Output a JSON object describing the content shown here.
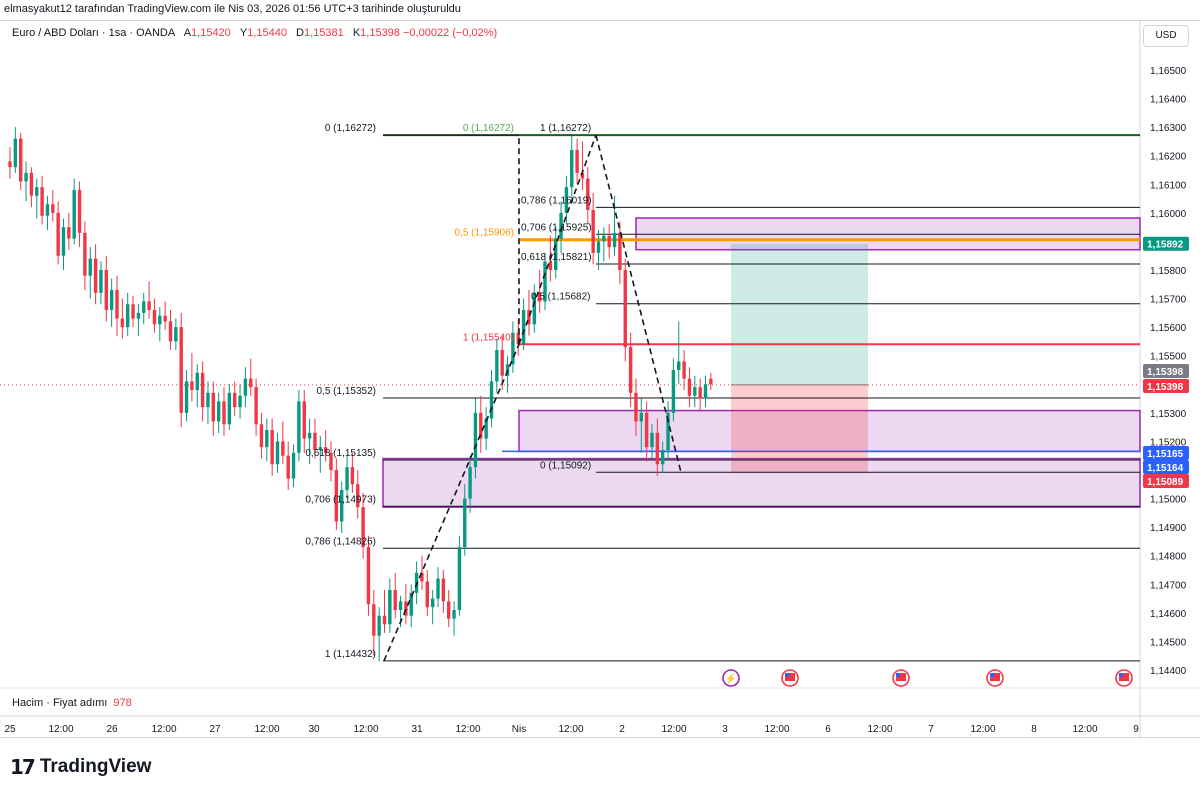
{
  "caption": "elmasyakut12 tarafından TradingView.com ile Nis 03, 2026 01:56 UTC+3 tarihinde oluşturuldu",
  "legend": {
    "symbol": "Euro / ABD Doları · 1sa · OANDA",
    "o_label": "A",
    "o": "1,15420",
    "h_label": "Y",
    "h": "1,15440",
    "l_label": "D",
    "l": "1,15381",
    "c_label": "K",
    "c": "1,15398",
    "change": "−0,00022 (−0,02%)"
  },
  "volume": {
    "label": "Hacim · Fiyat adımı",
    "value": "978"
  },
  "currency_button": "USD",
  "brand": {
    "mark": "17",
    "name": "TradingView"
  },
  "colors": {
    "up": "#089981",
    "down": "#f23645",
    "zone": "#9c27b0",
    "fib_gold": "#ff9800",
    "blue": "#2962ff",
    "green_line": "#1b5e20"
  },
  "chart_data": {
    "type": "candlestick",
    "symbol": "EURUSD",
    "ylim": [
      1.1437,
      1.1665
    ],
    "y_ticks": [
      {
        "value": 1.165,
        "label": "1,16500"
      },
      {
        "value": 1.164,
        "label": "1,16400"
      },
      {
        "value": 1.163,
        "label": "1,16300"
      },
      {
        "value": 1.162,
        "label": "1,16200"
      },
      {
        "value": 1.161,
        "label": "1,16100"
      },
      {
        "value": 1.16,
        "label": "1,16000"
      },
      {
        "value": 1.159,
        "label": "1,15900"
      },
      {
        "value": 1.158,
        "label": "1,15800"
      },
      {
        "value": 1.157,
        "label": "1,15700"
      },
      {
        "value": 1.156,
        "label": "1,15600"
      },
      {
        "value": 1.155,
        "label": "1,15500"
      },
      {
        "value": 1.153,
        "label": "1,15300"
      },
      {
        "value": 1.152,
        "label": "1,15200"
      },
      {
        "value": 1.15,
        "label": "1,15000"
      },
      {
        "value": 1.149,
        "label": "1,14900"
      },
      {
        "value": 1.148,
        "label": "1,14800"
      },
      {
        "value": 1.147,
        "label": "1,14700"
      },
      {
        "value": 1.146,
        "label": "1,14600"
      },
      {
        "value": 1.145,
        "label": "1,14500"
      },
      {
        "value": 1.144,
        "label": "1,14400"
      }
    ],
    "x_ticks": [
      {
        "label": "25",
        "x": 10
      },
      {
        "label": "12:00",
        "x": 61
      },
      {
        "label": "26",
        "x": 112
      },
      {
        "label": "12:00",
        "x": 164
      },
      {
        "label": "27",
        "x": 215
      },
      {
        "label": "12:00",
        "x": 267
      },
      {
        "label": "30",
        "x": 314
      },
      {
        "label": "12:00",
        "x": 366
      },
      {
        "label": "31",
        "x": 417
      },
      {
        "label": "12:00",
        "x": 468
      },
      {
        "label": "Nis",
        "x": 519
      },
      {
        "label": "12:00",
        "x": 571
      },
      {
        "label": "2",
        "x": 622
      },
      {
        "label": "12:00",
        "x": 674
      },
      {
        "label": "3",
        "x": 725
      },
      {
        "label": "12:00",
        "x": 777
      },
      {
        "label": "6",
        "x": 828
      },
      {
        "label": "12:00",
        "x": 880
      },
      {
        "label": "7",
        "x": 931
      },
      {
        "label": "12:00",
        "x": 983
      },
      {
        "label": "8",
        "x": 1034
      },
      {
        "label": "12:00",
        "x": 1085
      },
      {
        "label": "9",
        "x": 1136
      }
    ],
    "price_tags": [
      {
        "value": 1.15892,
        "label": "1,15892",
        "color": "#089981"
      },
      {
        "value": 1.15398,
        "label": "1,15398",
        "color": "#787b86"
      },
      {
        "value": 1.15398,
        "label": "1,15398",
        "color": "#f23645"
      },
      {
        "value": 1.15165,
        "label": "1,15165",
        "color": "#2962ff"
      },
      {
        "value": 1.15164,
        "label": "1,15164",
        "color": "#2962ff"
      },
      {
        "value": 1.15089,
        "label": "1,15089",
        "color": "#f23645"
      }
    ],
    "fib_left": [
      {
        "label": "0 (1,16272)",
        "value": 1.16272,
        "color": "#131722"
      },
      {
        "label": "0,5 (1,15352)",
        "value": 1.15352,
        "color": "#131722"
      },
      {
        "label": "0,618 (1,15135)",
        "value": 1.15135,
        "color": "#131722"
      },
      {
        "label": "0,706 (1,14973)",
        "value": 1.14973,
        "color": "#131722"
      },
      {
        "label": "0,786 (1,14826)",
        "value": 1.14826,
        "color": "#131722"
      },
      {
        "label": "1 (1,14432)",
        "value": 1.14432,
        "color": "#131722"
      }
    ],
    "fib_mid": [
      {
        "label": "0 (1,16272)",
        "value": 1.16272,
        "color": "#4caf50"
      },
      {
        "label": "0,5 (1,15906)",
        "value": 1.15906,
        "color": "#ff9800"
      },
      {
        "label": "1 (1,15540)",
        "value": 1.1554,
        "color": "#f23645"
      }
    ],
    "fib_right": [
      {
        "label": "1 (1,16272)",
        "value": 1.16272,
        "color": "#131722"
      },
      {
        "label": "0,786 (1,16019)",
        "value": 1.16019,
        "color": "#131722"
      },
      {
        "label": "0,706 (1,15925)",
        "value": 1.15925,
        "color": "#131722"
      },
      {
        "label": "0,618 (1,15821)",
        "value": 1.15821,
        "color": "#131722"
      },
      {
        "label": "0,5 (1,15682)",
        "value": 1.15682,
        "color": "#131722"
      },
      {
        "label": "0 (1,15092)",
        "value": 1.15092,
        "color": "#131722"
      }
    ],
    "levels": {
      "green_line": 1.16272,
      "gold_line": 1.15906,
      "red_line": 1.1554,
      "current_price": 1.15398,
      "blue_line": 1.15165
    },
    "zones": [
      {
        "x0": "2026-04-02 07:00",
        "x1": "chart-end",
        "top": 1.15982,
        "bottom": 1.15871
      },
      {
        "x0": "2026-03-31 14:00",
        "x1": "chart-end",
        "top": 1.15308,
        "bottom": 1.15165
      },
      {
        "x0": "2026-03-30 18:00",
        "x1": "chart-end",
        "top": 1.1514,
        "bottom": 1.1497
      }
    ],
    "position": {
      "type": "long",
      "entry": 1.15398,
      "target": 1.15892,
      "stop": 1.15089
    },
    "candles": [
      [
        1.1618,
        1.1623,
        1.1612,
        1.1616
      ],
      [
        1.1616,
        1.163,
        1.1614,
        1.1626
      ],
      [
        1.1626,
        1.1628,
        1.1608,
        1.1611
      ],
      [
        1.1611,
        1.1618,
        1.1604,
        1.1614
      ],
      [
        1.1614,
        1.1616,
        1.1602,
        1.1606
      ],
      [
        1.1606,
        1.1612,
        1.1598,
        1.1609
      ],
      [
        1.1609,
        1.1613,
        1.1596,
        1.1599
      ],
      [
        1.1599,
        1.1606,
        1.1594,
        1.1603
      ],
      [
        1.1603,
        1.1608,
        1.1597,
        1.16
      ],
      [
        1.16,
        1.1604,
        1.1582,
        1.1585
      ],
      [
        1.1585,
        1.1598,
        1.158,
        1.1595
      ],
      [
        1.1595,
        1.16,
        1.1587,
        1.1591
      ],
      [
        1.1591,
        1.1612,
        1.1589,
        1.1608
      ],
      [
        1.1608,
        1.1611,
        1.1588,
        1.1593
      ],
      [
        1.1593,
        1.1597,
        1.1573,
        1.1578
      ],
      [
        1.1578,
        1.1588,
        1.157,
        1.1584
      ],
      [
        1.1584,
        1.1589,
        1.1568,
        1.1572
      ],
      [
        1.1572,
        1.1583,
        1.1568,
        1.158
      ],
      [
        1.158,
        1.1585,
        1.1562,
        1.1566
      ],
      [
        1.1566,
        1.1577,
        1.156,
        1.1573
      ],
      [
        1.1573,
        1.1578,
        1.1557,
        1.1563
      ],
      [
        1.1563,
        1.157,
        1.1556,
        1.156
      ],
      [
        1.156,
        1.1572,
        1.1557,
        1.1568
      ],
      [
        1.1568,
        1.1571,
        1.156,
        1.1563
      ],
      [
        1.1563,
        1.1568,
        1.1557,
        1.1565
      ],
      [
        1.1565,
        1.1572,
        1.1561,
        1.1569
      ],
      [
        1.1569,
        1.1576,
        1.1563,
        1.1566
      ],
      [
        1.1566,
        1.157,
        1.1558,
        1.1561
      ],
      [
        1.1561,
        1.1567,
        1.1555,
        1.1564
      ],
      [
        1.1564,
        1.1569,
        1.1559,
        1.1562
      ],
      [
        1.1562,
        1.1566,
        1.1552,
        1.1555
      ],
      [
        1.1555,
        1.1563,
        1.1552,
        1.156
      ],
      [
        1.156,
        1.1565,
        1.1525,
        1.153
      ],
      [
        1.153,
        1.1545,
        1.1527,
        1.1541
      ],
      [
        1.1541,
        1.1551,
        1.1534,
        1.1538
      ],
      [
        1.1538,
        1.1547,
        1.1532,
        1.1544
      ],
      [
        1.1544,
        1.1548,
        1.1527,
        1.1532
      ],
      [
        1.1532,
        1.1541,
        1.1526,
        1.1537
      ],
      [
        1.1537,
        1.1541,
        1.1522,
        1.1527
      ],
      [
        1.1527,
        1.1537,
        1.1523,
        1.1534
      ],
      [
        1.1534,
        1.1539,
        1.1522,
        1.1526
      ],
      [
        1.1526,
        1.154,
        1.1524,
        1.1537
      ],
      [
        1.1537,
        1.1541,
        1.1529,
        1.1532
      ],
      [
        1.1532,
        1.154,
        1.1528,
        1.1536
      ],
      [
        1.1536,
        1.1546,
        1.1532,
        1.1542
      ],
      [
        1.1542,
        1.1549,
        1.1536,
        1.1539
      ],
      [
        1.1539,
        1.1542,
        1.1522,
        1.1526
      ],
      [
        1.1526,
        1.153,
        1.1514,
        1.1518
      ],
      [
        1.1518,
        1.1528,
        1.1513,
        1.1524
      ],
      [
        1.1524,
        1.1528,
        1.1508,
        1.1512
      ],
      [
        1.1512,
        1.1523,
        1.1509,
        1.152
      ],
      [
        1.152,
        1.1527,
        1.1512,
        1.1515
      ],
      [
        1.1515,
        1.152,
        1.1503,
        1.1507
      ],
      [
        1.1507,
        1.1519,
        1.1504,
        1.1516
      ],
      [
        1.1516,
        1.1538,
        1.1513,
        1.1534
      ],
      [
        1.1534,
        1.1538,
        1.1516,
        1.1521
      ],
      [
        1.1521,
        1.1528,
        1.1512,
        1.1523
      ],
      [
        1.1523,
        1.1528,
        1.1514,
        1.1517
      ],
      [
        1.1517,
        1.1522,
        1.1509,
        1.1518
      ],
      [
        1.1518,
        1.1524,
        1.1513,
        1.1516
      ],
      [
        1.1516,
        1.152,
        1.1506,
        1.151
      ],
      [
        1.151,
        1.1514,
        1.1489,
        1.1492
      ],
      [
        1.1492,
        1.1506,
        1.1488,
        1.1503
      ],
      [
        1.1503,
        1.1515,
        1.15,
        1.1511
      ],
      [
        1.1511,
        1.1516,
        1.1502,
        1.1505
      ],
      [
        1.1505,
        1.151,
        1.1493,
        1.1497
      ],
      [
        1.1497,
        1.1502,
        1.1479,
        1.1483
      ],
      [
        1.1483,
        1.1487,
        1.1459,
        1.1463
      ],
      [
        1.1463,
        1.1468,
        1.1445,
        1.1452
      ],
      [
        1.1452,
        1.1462,
        1.1443,
        1.1459
      ],
      [
        1.1459,
        1.1468,
        1.1453,
        1.1456
      ],
      [
        1.1456,
        1.1472,
        1.1453,
        1.1468
      ],
      [
        1.1468,
        1.1474,
        1.1458,
        1.1461
      ],
      [
        1.1461,
        1.1466,
        1.1455,
        1.1464
      ],
      [
        1.1464,
        1.147,
        1.1456,
        1.1459
      ],
      [
        1.1459,
        1.147,
        1.1455,
        1.1467
      ],
      [
        1.1467,
        1.1478,
        1.1463,
        1.1474
      ],
      [
        1.1474,
        1.148,
        1.1468,
        1.1471
      ],
      [
        1.1471,
        1.1475,
        1.1459,
        1.1462
      ],
      [
        1.1462,
        1.1468,
        1.1456,
        1.1465
      ],
      [
        1.1465,
        1.1476,
        1.1462,
        1.1472
      ],
      [
        1.1472,
        1.1475,
        1.146,
        1.1464
      ],
      [
        1.1464,
        1.1468,
        1.1455,
        1.1458
      ],
      [
        1.1458,
        1.1464,
        1.1452,
        1.1461
      ],
      [
        1.1461,
        1.1487,
        1.1459,
        1.1483
      ],
      [
        1.1483,
        1.1505,
        1.148,
        1.15
      ],
      [
        1.15,
        1.1515,
        1.1495,
        1.1511
      ],
      [
        1.1511,
        1.1535,
        1.1507,
        1.153
      ],
      [
        1.153,
        1.1536,
        1.1516,
        1.1521
      ],
      [
        1.1521,
        1.1532,
        1.1517,
        1.1528
      ],
      [
        1.1528,
        1.1545,
        1.1525,
        1.1541
      ],
      [
        1.1541,
        1.1556,
        1.1537,
        1.1552
      ],
      [
        1.1552,
        1.1557,
        1.1538,
        1.1543
      ],
      [
        1.1543,
        1.155,
        1.1537,
        1.1547
      ],
      [
        1.1547,
        1.1562,
        1.1544,
        1.1558
      ],
      [
        1.1558,
        1.1563,
        1.155,
        1.1554
      ],
      [
        1.1554,
        1.157,
        1.1552,
        1.1566
      ],
      [
        1.1566,
        1.1573,
        1.1557,
        1.1561
      ],
      [
        1.1561,
        1.1575,
        1.1558,
        1.1572
      ],
      [
        1.1572,
        1.158,
        1.1565,
        1.1569
      ],
      [
        1.1569,
        1.1586,
        1.1566,
        1.1583
      ],
      [
        1.1583,
        1.1592,
        1.1576,
        1.158
      ],
      [
        1.158,
        1.1595,
        1.1577,
        1.1591
      ],
      [
        1.1591,
        1.1604,
        1.1586,
        1.16
      ],
      [
        1.16,
        1.1613,
        1.1596,
        1.1609
      ],
      [
        1.1609,
        1.1627,
        1.1605,
        1.1622
      ],
      [
        1.1622,
        1.1626,
        1.161,
        1.1614
      ],
      [
        1.1614,
        1.1625,
        1.1608,
        1.1612
      ],
      [
        1.1612,
        1.1616,
        1.1596,
        1.1601
      ],
      [
        1.1601,
        1.1607,
        1.1582,
        1.1586
      ],
      [
        1.1586,
        1.1594,
        1.158,
        1.159
      ],
      [
        1.159,
        1.1595,
        1.1583,
        1.1592
      ],
      [
        1.1592,
        1.1596,
        1.1584,
        1.1588
      ],
      [
        1.1588,
        1.1606,
        1.1585,
        1.1593
      ],
      [
        1.1593,
        1.1597,
        1.1575,
        1.158
      ],
      [
        1.158,
        1.1584,
        1.1548,
        1.1553
      ],
      [
        1.1553,
        1.1558,
        1.1532,
        1.1537
      ],
      [
        1.1537,
        1.1542,
        1.1522,
        1.1527
      ],
      [
        1.1527,
        1.1535,
        1.1516,
        1.153
      ],
      [
        1.153,
        1.1534,
        1.1513,
        1.1518
      ],
      [
        1.1518,
        1.1526,
        1.1514,
        1.1523
      ],
      [
        1.1523,
        1.1528,
        1.1508,
        1.1512
      ],
      [
        1.1512,
        1.152,
        1.1509,
        1.1517
      ],
      [
        1.1517,
        1.1534,
        1.1514,
        1.153
      ],
      [
        1.153,
        1.1549,
        1.1527,
        1.1545
      ],
      [
        1.1545,
        1.1562,
        1.154,
        1.1548
      ],
      [
        1.1548,
        1.1552,
        1.1538,
        1.1542
      ],
      [
        1.1542,
        1.1546,
        1.1532,
        1.1536
      ],
      [
        1.1536,
        1.1543,
        1.1532,
        1.1539
      ],
      [
        1.1539,
        1.1542,
        1.1531,
        1.1535
      ],
      [
        1.1535,
        1.1543,
        1.1532,
        1.154
      ],
      [
        1.1542,
        1.1544,
        1.1538,
        1.154
      ]
    ],
    "volume_value": 978
  }
}
